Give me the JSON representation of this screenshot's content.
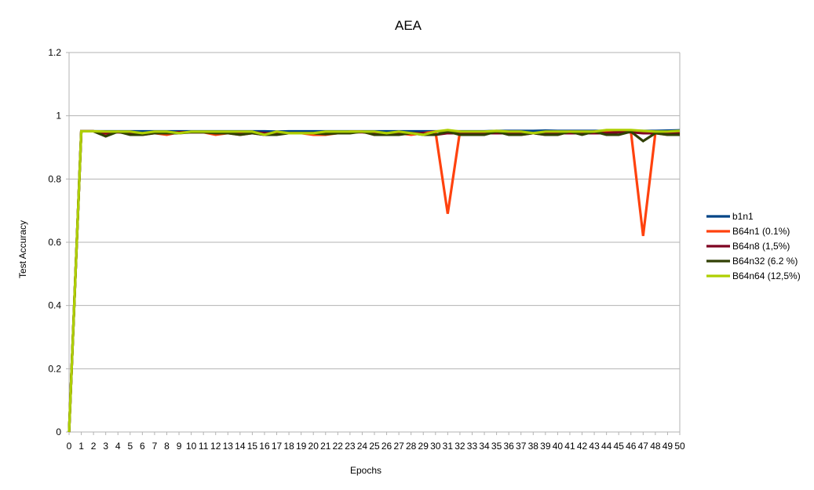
{
  "chart_data": {
    "type": "line",
    "title": "AEA",
    "xlabel": "Epochs",
    "ylabel": "Test Accuracy",
    "ylim": [
      0,
      1.2
    ],
    "yticks": [
      "0",
      "0.2",
      "0.4",
      "0.6",
      "0.8",
      "1",
      "1.2"
    ],
    "grid": true,
    "legend_position": "right",
    "x": [
      0,
      1,
      2,
      3,
      4,
      5,
      6,
      7,
      8,
      9,
      10,
      11,
      12,
      13,
      14,
      15,
      16,
      17,
      18,
      19,
      20,
      21,
      22,
      23,
      24,
      25,
      26,
      27,
      28,
      29,
      30,
      31,
      32,
      33,
      34,
      35,
      36,
      37,
      38,
      39,
      40,
      41,
      42,
      43,
      44,
      45,
      46,
      47,
      48,
      49,
      50
    ],
    "x_tick_labels": [
      "0",
      "1",
      "2",
      "3",
      "4",
      "5",
      "6",
      "7",
      "8",
      "9",
      "10",
      "11",
      "12",
      "13",
      "14",
      "15",
      "16",
      "17",
      "18",
      "19",
      "20",
      "21",
      "22",
      "23",
      "24",
      "25",
      "26",
      "27",
      "28",
      "29",
      "30",
      "31",
      "32",
      "33",
      "34",
      "35",
      "36",
      "37",
      "38",
      "39",
      "40",
      "41",
      "42",
      "43",
      "44",
      "45",
      "46",
      "47",
      "48",
      "49",
      "50"
    ],
    "series": [
      {
        "name": "b1n1",
        "color": "#004586",
        "values": [
          0,
          0.951,
          0.951,
          0.951,
          0.951,
          0.951,
          0.951,
          0.951,
          0.951,
          0.951,
          0.951,
          0.951,
          0.951,
          0.951,
          0.951,
          0.951,
          0.951,
          0.95,
          0.951,
          0.951,
          0.951,
          0.951,
          0.951,
          0.951,
          0.951,
          0.951,
          0.951,
          0.951,
          0.951,
          0.951,
          0.951,
          0.951,
          0.951,
          0.951,
          0.951,
          0.952,
          0.952,
          0.952,
          0.952,
          0.953,
          0.952,
          0.952,
          0.952,
          0.952,
          0.952,
          0.952,
          0.952,
          0.952,
          0.952,
          0.953,
          0.954
        ]
      },
      {
        "name": "B64n1 (0.1%)",
        "color": "#ff420e",
        "values": [
          0,
          0.951,
          0.951,
          0.94,
          0.95,
          0.942,
          0.94,
          0.945,
          0.94,
          0.948,
          0.948,
          0.948,
          0.94,
          0.945,
          0.94,
          0.945,
          0.94,
          0.945,
          0.945,
          0.945,
          0.94,
          0.94,
          0.945,
          0.95,
          0.95,
          0.94,
          0.94,
          0.945,
          0.94,
          0.945,
          0.95,
          0.69,
          0.95,
          0.945,
          0.945,
          0.95,
          0.945,
          0.94,
          0.945,
          0.94,
          0.94,
          0.95,
          0.945,
          0.95,
          0.95,
          0.95,
          0.95,
          0.62,
          0.945,
          0.94,
          0.945
        ]
      },
      {
        "name": "B64n8 (1,5%)",
        "color": "#7e0021",
        "values": [
          0,
          0.951,
          0.951,
          0.945,
          0.948,
          0.945,
          0.945,
          0.948,
          0.945,
          0.948,
          0.948,
          0.948,
          0.948,
          0.948,
          0.945,
          0.948,
          0.945,
          0.945,
          0.945,
          0.945,
          0.945,
          0.945,
          0.945,
          0.948,
          0.948,
          0.945,
          0.945,
          0.945,
          0.945,
          0.945,
          0.94,
          0.945,
          0.945,
          0.945,
          0.945,
          0.945,
          0.945,
          0.945,
          0.945,
          0.945,
          0.945,
          0.945,
          0.945,
          0.945,
          0.945,
          0.948,
          0.948,
          0.945,
          0.945,
          0.945,
          0.945
        ]
      },
      {
        "name": "B64n32 (6.2 %)",
        "color": "#314004",
        "values": [
          0,
          0.951,
          0.951,
          0.935,
          0.95,
          0.94,
          0.94,
          0.945,
          0.945,
          0.945,
          0.948,
          0.948,
          0.945,
          0.945,
          0.94,
          0.945,
          0.94,
          0.94,
          0.945,
          0.945,
          0.945,
          0.942,
          0.945,
          0.945,
          0.95,
          0.94,
          0.94,
          0.94,
          0.945,
          0.94,
          0.94,
          0.95,
          0.94,
          0.94,
          0.94,
          0.95,
          0.94,
          0.94,
          0.945,
          0.94,
          0.94,
          0.95,
          0.94,
          0.95,
          0.94,
          0.94,
          0.95,
          0.92,
          0.945,
          0.94,
          0.94
        ]
      },
      {
        "name": "B64n64 (12,5%)",
        "color": "#aecf00",
        "values": [
          0,
          0.951,
          0.951,
          0.95,
          0.95,
          0.95,
          0.945,
          0.95,
          0.95,
          0.945,
          0.95,
          0.95,
          0.95,
          0.95,
          0.95,
          0.95,
          0.94,
          0.95,
          0.945,
          0.945,
          0.945,
          0.95,
          0.95,
          0.95,
          0.95,
          0.95,
          0.945,
          0.95,
          0.945,
          0.94,
          0.95,
          0.955,
          0.95,
          0.95,
          0.95,
          0.952,
          0.95,
          0.95,
          0.945,
          0.95,
          0.95,
          0.95,
          0.95,
          0.95,
          0.955,
          0.955,
          0.955,
          0.952,
          0.95,
          0.95,
          0.952
        ]
      }
    ]
  }
}
